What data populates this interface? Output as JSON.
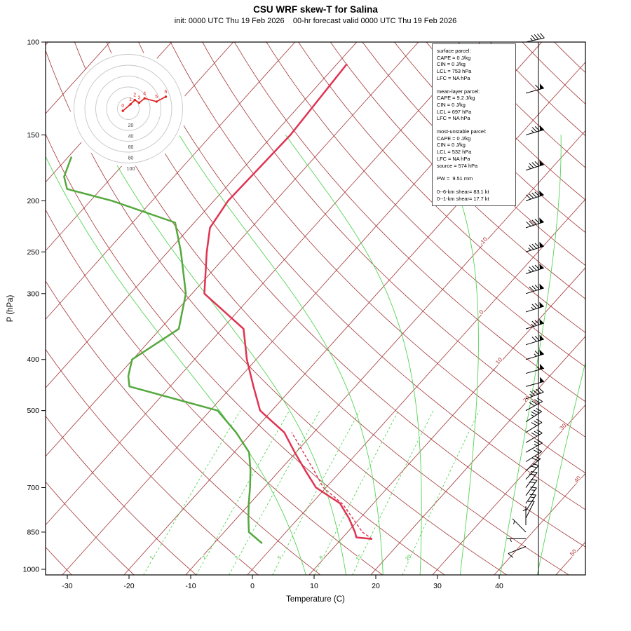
{
  "title": "CSU WRF skew-T for Salina",
  "subtitle": "init: 0000 UTC Thu 19 Feb 2026    00-hr forecast valid 0000 UTC Thu 19 Feb 2026",
  "axes": {
    "y_label": "P (hPa)",
    "x_label": "Temperature (C)",
    "x_ticks": [
      -30,
      -20,
      -10,
      0,
      10,
      20,
      30,
      40
    ],
    "y_ticks": [
      100,
      150,
      200,
      250,
      300,
      400,
      500,
      700,
      850,
      1000
    ]
  },
  "info_box": {
    "sections": [
      {
        "title": "surface parcel:",
        "lines": [
          "CAPE = 0 J/kg",
          "CIN = 0 J/kg",
          "LCL = 753 hPa",
          "LFC = NA hPa"
        ]
      },
      {
        "title": "mean-layer parcel:",
        "lines": [
          "CAPE = 9.2 J/kg",
          "CIN = 0 J/kg",
          "LCL = 697 hPa",
          "LFC = NA hPa"
        ]
      },
      {
        "title": "most-unstable parcel:",
        "lines": [
          "CAPE = 0 J/kg",
          "CIN = 0 J/kg",
          "LCL = 532 hPa",
          "LFC = NA hPa",
          "source = 574 hPa"
        ]
      },
      {
        "title": "",
        "lines": [
          "PW =  9.51 mm"
        ]
      },
      {
        "title": "",
        "lines": [
          "0--6-km shear= 83.1 kt",
          "0--1-km shear= 17.7 kt"
        ]
      }
    ]
  },
  "chart_data": {
    "type": "skewt",
    "p_top": 100,
    "p_bottom": 1025,
    "skew": 0.9,
    "isotherm_step": 10,
    "isotherm_range": [
      -110,
      50
    ],
    "dry_adiabat_theta_k": {
      "start": 233,
      "end": 473,
      "step": 10
    },
    "moist_adiabat_t0_c": [
      9.5,
      16,
      22,
      28,
      34.5,
      41,
      47
    ],
    "mixing_ratio_lines_gkg": [
      1,
      2,
      3,
      5,
      8,
      12,
      20
    ],
    "mixing_label_pressure": 955,
    "isotherm_labels": [
      {
        "t": -10,
        "p": 240
      },
      {
        "t": 0,
        "p": 327
      },
      {
        "t": 10,
        "p": 405
      },
      {
        "t": 20,
        "p": 478
      },
      {
        "t": 30,
        "p": 540
      },
      {
        "t": 40,
        "p": 679
      },
      {
        "t": 50,
        "p": 935
      }
    ],
    "temperature": [
      [
        876,
        15.0
      ],
      [
        870,
        12.2
      ],
      [
        850,
        11.2
      ],
      [
        800,
        8.2
      ],
      [
        750,
        4.6
      ],
      [
        700,
        -1.6
      ],
      [
        650,
        -5.8
      ],
      [
        600,
        -10.2
      ],
      [
        550,
        -14.8
      ],
      [
        500,
        -21.9
      ],
      [
        450,
        -26.5
      ],
      [
        400,
        -31.5
      ],
      [
        350,
        -36.5
      ],
      [
        300,
        -48.0
      ],
      [
        250,
        -53.7
      ],
      [
        225,
        -56.7
      ],
      [
        200,
        -57.7
      ],
      [
        150,
        -57.2
      ],
      [
        110,
        -58.4
      ]
    ],
    "dewpoint": [
      [
        893,
        -2.2
      ],
      [
        850,
        -6.0
      ],
      [
        800,
        -8.1
      ],
      [
        750,
        -10.2
      ],
      [
        700,
        -12.3
      ],
      [
        650,
        -14.7
      ],
      [
        600,
        -17.6
      ],
      [
        550,
        -22.6
      ],
      [
        500,
        -28.8
      ],
      [
        450,
        -46.6
      ],
      [
        430,
        -48.3
      ],
      [
        400,
        -50.1
      ],
      [
        350,
        -47.0
      ],
      [
        300,
        -51.0
      ],
      [
        250,
        -57.9
      ],
      [
        220,
        -63.1
      ],
      [
        200,
        -76.5
      ],
      [
        190,
        -85.5
      ],
      [
        180,
        -87.8
      ],
      [
        165,
        -89.5
      ]
    ],
    "parcel": [
      [
        876,
        15.0
      ],
      [
        850,
        12.4
      ],
      [
        800,
        8.8
      ],
      [
        753,
        5.2
      ],
      [
        700,
        -0.4
      ],
      [
        650,
        -4.4
      ],
      [
        600,
        -8.8
      ],
      [
        550,
        -13.6
      ]
    ],
    "winds_uv": [
      [
        905,
        -10,
        -4
      ],
      [
        875,
        -6,
        0
      ],
      [
        850,
        -3,
        3
      ],
      [
        825,
        0,
        6
      ],
      [
        800,
        4,
        8
      ],
      [
        775,
        7,
        11
      ],
      [
        750,
        9,
        13
      ],
      [
        725,
        11,
        15
      ],
      [
        700,
        12,
        16
      ],
      [
        675,
        14,
        15
      ],
      [
        650,
        16,
        13
      ],
      [
        625,
        19,
        12
      ],
      [
        600,
        21,
        12
      ],
      [
        575,
        24,
        14
      ],
      [
        550,
        26,
        16
      ],
      [
        525,
        28,
        18
      ],
      [
        500,
        33,
        18
      ],
      [
        475,
        40,
        15
      ],
      [
        450,
        48,
        13
      ],
      [
        425,
        55,
        15
      ],
      [
        400,
        60,
        18
      ],
      [
        375,
        66,
        20
      ],
      [
        350,
        70,
        22
      ],
      [
        325,
        74,
        23
      ],
      [
        300,
        78,
        24
      ],
      [
        275,
        80,
        25
      ],
      [
        250,
        83,
        26
      ],
      [
        225,
        85,
        27
      ],
      [
        200,
        85,
        28
      ],
      [
        175,
        80,
        25
      ],
      [
        150,
        70,
        20
      ],
      [
        125,
        58,
        16
      ],
      [
        100,
        45,
        10
      ]
    ],
    "hodograph": {
      "rings": [
        20,
        40,
        60,
        80,
        100
      ],
      "labels": [
        "0",
        "1",
        "2",
        "3",
        "4",
        "5",
        "6"
      ],
      "points_uv": [
        [
          -10,
          -4
        ],
        [
          4,
          8
        ],
        [
          12,
          16
        ],
        [
          20,
          11
        ],
        [
          30,
          19
        ],
        [
          52,
          13
        ],
        [
          69,
          22
        ]
      ]
    }
  },
  "colors": {
    "background_line": "#A23434",
    "isotherm_label": "#B03232",
    "moist": "#55D455",
    "mixing": "#55D455",
    "mixing_label": "#3FBF3F",
    "temp_trace": "#E03352",
    "dewpoint_trace": "#55A83E",
    "hodo_trace": "#E02020",
    "ring": "#C6C6C6",
    "frame": "#000000"
  }
}
